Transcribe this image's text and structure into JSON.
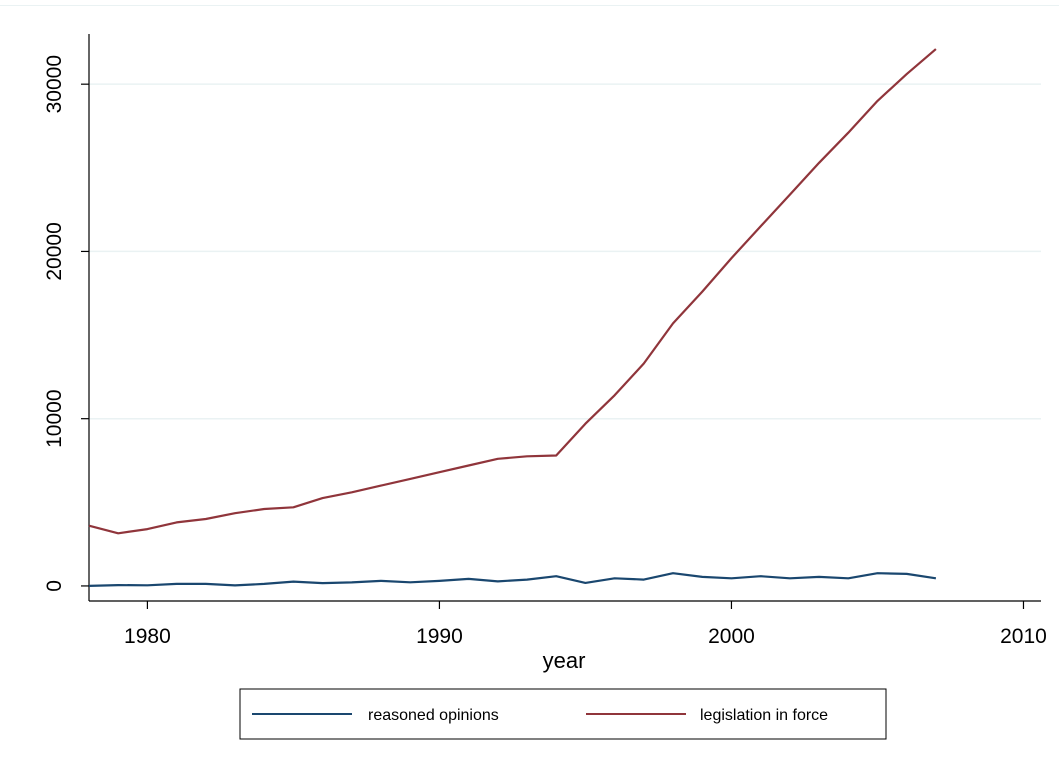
{
  "chart_data": {
    "type": "line",
    "title": "",
    "xlabel": "year",
    "ylabel": "",
    "xlim": [
      1978,
      2010.6
    ],
    "ylim": [
      -900,
      33000
    ],
    "x_ticks": [
      1980,
      1990,
      2000,
      2010
    ],
    "y_ticks": [
      0,
      10000,
      20000,
      30000
    ],
    "grid": "horizontal",
    "legend_position": "bottom",
    "x": [
      1978,
      1979,
      1980,
      1981,
      1982,
      1983,
      1984,
      1985,
      1986,
      1987,
      1988,
      1989,
      1990,
      1991,
      1992,
      1993,
      1994,
      1995,
      1996,
      1997,
      1998,
      1999,
      2000,
      2001,
      2002,
      2003,
      2004,
      2005,
      2006,
      2007
    ],
    "series": [
      {
        "name": "reasoned opinions",
        "color": "#1a476f",
        "values": [
          0,
          50,
          40,
          120,
          120,
          30,
          120,
          260,
          170,
          210,
          300,
          220,
          300,
          420,
          270,
          380,
          580,
          180,
          460,
          380,
          760,
          540,
          460,
          580,
          460,
          540,
          460,
          760,
          720,
          460
        ]
      },
      {
        "name": "legislation in force",
        "color": "#90353b",
        "values": [
          3600,
          3150,
          3400,
          3800,
          4000,
          4350,
          4600,
          4700,
          5250,
          5600,
          6000,
          6400,
          6800,
          7200,
          7600,
          7750,
          7800,
          9700,
          11400,
          13300,
          15700,
          17600,
          19600,
          21500,
          23400,
          25300,
          27100,
          29000,
          30600,
          32100
        ]
      }
    ]
  }
}
